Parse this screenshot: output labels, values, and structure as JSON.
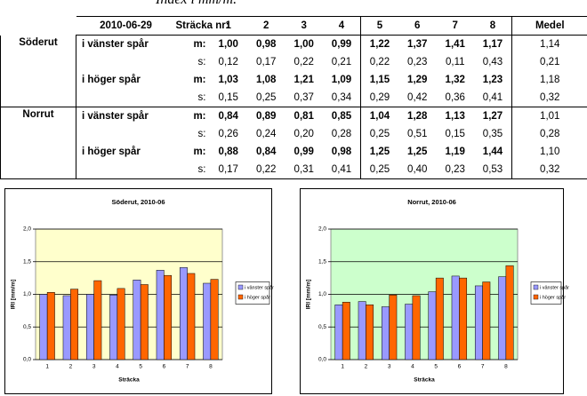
{
  "header_text": "Index i mm/m.",
  "table": {
    "header": {
      "date": "2010-06-29",
      "section_label": "Sträcka nr:",
      "sections": [
        "1",
        "2",
        "3",
        "4",
        "5",
        "6",
        "7",
        "8"
      ],
      "mean": "Medel"
    },
    "groups": [
      {
        "name": "Söderut",
        "rows": [
          {
            "label": "i vänster spår",
            "stat": "m:",
            "values": [
              "1,00",
              "0,98",
              "1,00",
              "0,99",
              "1,22",
              "1,37",
              "1,41",
              "1,17"
            ],
            "mean": "1,14"
          },
          {
            "stat": "s:",
            "values": [
              "0,12",
              "0,17",
              "0,22",
              "0,21",
              "0,22",
              "0,23",
              "0,11",
              "0,43"
            ],
            "mean": "0,21"
          },
          {
            "label": "i höger spår",
            "stat": "m:",
            "values": [
              "1,03",
              "1,08",
              "1,21",
              "1,09",
              "1,15",
              "1,29",
              "1,32",
              "1,23"
            ],
            "mean": "1,18"
          },
          {
            "stat": "s:",
            "values": [
              "0,15",
              "0,25",
              "0,37",
              "0,34",
              "0,29",
              "0,42",
              "0,36",
              "0,41"
            ],
            "mean": "0,32"
          }
        ]
      },
      {
        "name": "Norrut",
        "rows": [
          {
            "label": "i vänster spår",
            "stat": "m:",
            "values": [
              "0,84",
              "0,89",
              "0,81",
              "0,85",
              "1,04",
              "1,28",
              "1,13",
              "1,27"
            ],
            "mean": "1,01"
          },
          {
            "stat": "s:",
            "values": [
              "0,26",
              "0,24",
              "0,20",
              "0,28",
              "0,25",
              "0,51",
              "0,15",
              "0,35"
            ],
            "mean": "0,28"
          },
          {
            "label": "i höger spår",
            "stat": "m:",
            "values": [
              "0,88",
              "0,84",
              "0,99",
              "0,98",
              "1,25",
              "1,25",
              "1,19",
              "1,44"
            ],
            "mean": "1,10"
          },
          {
            "stat": "s:",
            "values": [
              "0,17",
              "0,22",
              "0,31",
              "0,41",
              "0,25",
              "0,40",
              "0,23",
              "0,53"
            ],
            "mean": "0,32"
          }
        ]
      }
    ]
  },
  "chart_data": [
    {
      "type": "bar",
      "title": "Söderut, 2010-06",
      "x_label": "Sträcka",
      "y_label": "IRI [mm/m]",
      "categories": [
        "1",
        "2",
        "3",
        "4",
        "5",
        "6",
        "7",
        "8"
      ],
      "series": [
        {
          "name": "i vänster spår",
          "color": "#9999ff",
          "values": [
            1.0,
            0.98,
            1.0,
            0.99,
            1.22,
            1.37,
            1.41,
            1.17
          ]
        },
        {
          "name": "i höger spår",
          "color": "#ff6600",
          "values": [
            1.03,
            1.08,
            1.21,
            1.09,
            1.15,
            1.29,
            1.32,
            1.23
          ]
        }
      ],
      "ylim": [
        0,
        2
      ],
      "yticks": [
        {
          "value": 0,
          "label": "0,0"
        },
        {
          "value": 0.5,
          "label": "0,5"
        },
        {
          "value": 1,
          "label": "1,0"
        },
        {
          "value": 1.5,
          "label": "1,5"
        },
        {
          "value": 2,
          "label": "2,0"
        }
      ],
      "grid": true,
      "legend": "right",
      "plot_background": "#ffffcc"
    },
    {
      "type": "bar",
      "title": "Norrut, 2010-06",
      "x_label": "Sträcka",
      "y_label": "IRI [mm/m]",
      "categories": [
        "1",
        "2",
        "3",
        "4",
        "5",
        "6",
        "7",
        "8"
      ],
      "series": [
        {
          "name": "i vänster spår",
          "color": "#9999ff",
          "values": [
            0.84,
            0.89,
            0.81,
            0.85,
            1.04,
            1.28,
            1.13,
            1.27
          ]
        },
        {
          "name": "i höger spår",
          "color": "#ff6600",
          "values": [
            0.88,
            0.84,
            0.99,
            0.98,
            1.25,
            1.25,
            1.19,
            1.44
          ]
        }
      ],
      "ylim": [
        0,
        2
      ],
      "yticks": [
        {
          "value": 0,
          "label": "0,0"
        },
        {
          "value": 0.5,
          "label": "0,5"
        },
        {
          "value": 1,
          "label": "1,0"
        },
        {
          "value": 1.5,
          "label": "1,5"
        },
        {
          "value": 2,
          "label": "2,0"
        }
      ],
      "grid": true,
      "legend": "right",
      "plot_background": "#ccffcc"
    }
  ]
}
